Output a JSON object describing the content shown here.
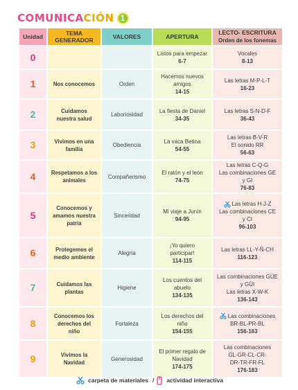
{
  "title": {
    "part1": "COMUNICA",
    "part2": "CIÓN",
    "number": "1"
  },
  "headers": {
    "unidad": "Unidad",
    "tema_line1": "TEMA",
    "tema_line2": "GENERADOR",
    "valores": "VALORES",
    "apertura": "APERTURA",
    "lecto_line1": "LECTO- ESCRITURA",
    "lecto_sub": "Orden de los fonemas"
  },
  "rows": [
    {
      "unit": "0",
      "tema": [],
      "valor": "",
      "apertura": [
        "Listos para empezar"
      ],
      "apertura_pages": "6-7",
      "lecto": [
        {
          "text": "Vocales",
          "icon": ""
        }
      ],
      "lecto_pages": "8-13"
    },
    {
      "unit": "1",
      "tema": [
        "Nos conocemos"
      ],
      "valor": "Orden",
      "apertura": [
        "Hacemos nuevos",
        "amigos"
      ],
      "apertura_pages": "14-15",
      "lecto": [
        {
          "text": "Las letras M-P-L-T",
          "icon": ""
        }
      ],
      "lecto_pages": "16-23"
    },
    {
      "unit": "2",
      "tema": [
        "Cuidamos",
        "nuestra salud"
      ],
      "valor": "Laboriosidad",
      "apertura": [
        "La fiesta de Daniel"
      ],
      "apertura_pages": "34-35",
      "lecto": [
        {
          "text": "Las letras S-N-D-F",
          "icon": ""
        }
      ],
      "lecto_pages": "36-43"
    },
    {
      "unit": "3",
      "tema": [
        "Vivimos en una",
        "familia"
      ],
      "valor": "Obediencia",
      "apertura": [
        "La vaca Betina"
      ],
      "apertura_pages": "54-55",
      "lecto": [
        {
          "text": "Las letras B-V-R",
          "icon": ""
        },
        {
          "text": "El sonido RR",
          "icon": ""
        }
      ],
      "lecto_pages": "56-63"
    },
    {
      "unit": "4",
      "tema": [
        "Respetamos a los",
        "animales"
      ],
      "valor": "Compañerismo",
      "apertura": [
        "El ratón y el león"
      ],
      "apertura_pages": "74-75",
      "lecto": [
        {
          "text": "Las letras C-Q-G",
          "icon": ""
        },
        {
          "text": "Las combinaciones GE",
          "icon": ""
        },
        {
          "text": "y GI",
          "icon": ""
        }
      ],
      "lecto_pages": "76-83"
    },
    {
      "unit": "5",
      "tema": [
        "Conocemos y",
        "amamos nuestra",
        "patria"
      ],
      "valor": "Sinceridad",
      "apertura": [
        "Mi viaje a Junín"
      ],
      "apertura_pages": "94-95",
      "lecto": [
        {
          "text": "Las letras H-J-Z",
          "icon": "scissors-icon"
        },
        {
          "text": "Las combinaciones CE",
          "icon": ""
        },
        {
          "text": "y CI",
          "icon": ""
        }
      ],
      "lecto_pages": "96-103"
    },
    {
      "unit": "6",
      "tema": [
        "Protegemos el",
        "medio ambiente"
      ],
      "valor": "Alegría",
      "apertura": [
        "¡Yo quiero",
        "participar!"
      ],
      "apertura_pages": "114-115",
      "lecto": [
        {
          "text": "Las letras LL-Y-Ñ-CH",
          "icon": ""
        }
      ],
      "lecto_pages": "116-123"
    },
    {
      "unit": "7",
      "tema": [
        "Cuidamos las",
        "plantas"
      ],
      "valor": "Higiene",
      "apertura": [
        "Los cuentos del",
        "abuelo"
      ],
      "apertura_pages": "134-135",
      "lecto": [
        {
          "text": "Las combinaciones GÜE",
          "icon": ""
        },
        {
          "text": "y GÜI",
          "icon": ""
        },
        {
          "text": "Las letras X-W-K",
          "icon": ""
        }
      ],
      "lecto_pages": "136-143"
    },
    {
      "unit": "8",
      "tema": [
        "Conocemos los",
        "derechos del",
        "niño"
      ],
      "valor": "Fortaleza",
      "apertura": [
        "Los derechos del",
        "niño"
      ],
      "apertura_pages": "154-155",
      "lecto": [
        {
          "text": "Las combinaciones",
          "icon": "scissors-icon"
        },
        {
          "text": "BR-BL-PR-BL",
          "icon": ""
        }
      ],
      "lecto_pages": "156-163"
    },
    {
      "unit": "9",
      "tema": [
        "Vivimos la",
        "Navidad"
      ],
      "valor": "Generosidad",
      "apertura": [
        "El primer regalo de",
        "Navidad"
      ],
      "apertura_pages": "174-175",
      "lecto": [
        {
          "text": "Las combinaciones",
          "icon": ""
        },
        {
          "text": "GL-GR-CL-CR-",
          "icon": ""
        },
        {
          "text": "DR-TR-FR-FL",
          "icon": ""
        }
      ],
      "lecto_pages": "176-183"
    }
  ],
  "legend": {
    "materials": "carpeta de materiales",
    "separator": "/",
    "interactive": "actividad interactiva"
  },
  "colors": {
    "unidad": "#f4a7b9",
    "tema": "#f5b823",
    "valores": "#7fd0c8",
    "apertura": "#b8dc55",
    "lecto": "#e8b8b0"
  }
}
